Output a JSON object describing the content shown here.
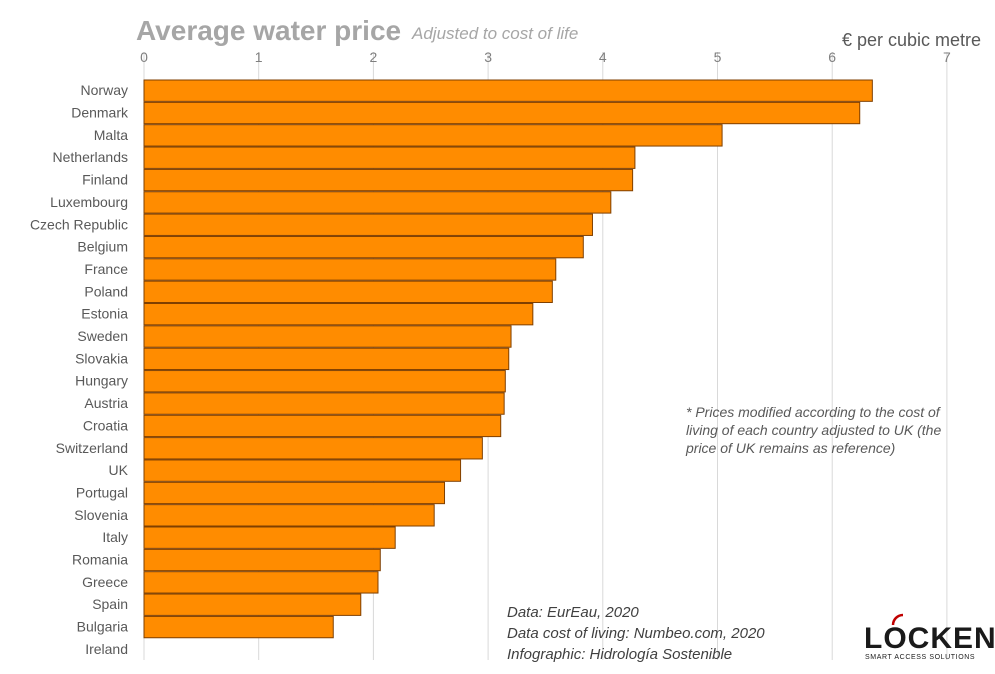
{
  "chart_data": {
    "type": "bar",
    "orientation": "horizontal",
    "title": "Average water price",
    "subtitle": "Adjusted to cost of life",
    "unit_label": "€ per cubic metre",
    "xlim": [
      0,
      7
    ],
    "x_ticks": [
      "0",
      "1",
      "2",
      "3",
      "4",
      "5",
      "6",
      "7"
    ],
    "grid": "vertical",
    "bar_color": "#FF8C00",
    "bar_edge_color": "#7F3F00",
    "categories": [
      "Norway",
      "Denmark",
      "Malta",
      "Netherlands",
      "Finland",
      "Luxembourg",
      "Czech Republic",
      "Belgium",
      "France",
      "Poland",
      "Estonia",
      "Sweden",
      "Slovakia",
      "Hungary",
      "Austria",
      "Croatia",
      "Switzerland",
      "UK",
      "Portugal",
      "Slovenia",
      "Italy",
      "Romania",
      "Greece",
      "Spain",
      "Bulgaria",
      "Ireland"
    ],
    "values": [
      6.35,
      6.24,
      5.04,
      4.28,
      4.26,
      4.07,
      3.91,
      3.83,
      3.59,
      3.56,
      3.39,
      3.2,
      3.18,
      3.15,
      3.14,
      3.11,
      2.95,
      2.76,
      2.62,
      2.53,
      2.19,
      2.06,
      2.04,
      1.89,
      1.65,
      0
    ]
  },
  "note": [
    "* Prices modified according to the cost of",
    "living of each country adjusted to UK (the",
    "price of UK remains as reference)"
  ],
  "sources": [
    "Data: EurEau, 2020",
    "Data cost of living: Numbeo.com, 2020",
    "Infographic: Hidrología Sostenible"
  ],
  "logo": {
    "text": "LOCKEN",
    "tagline": "SMART ACCESS SOLUTIONS"
  }
}
